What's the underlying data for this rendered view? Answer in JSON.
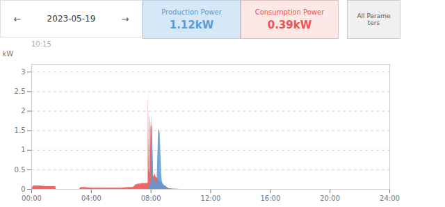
{
  "chart_data": {
    "type": "area",
    "title": "2023-05-19",
    "ylabel": "kW",
    "annotations": [
      "←",
      "→",
      "1.12kW",
      "0.39kW",
      "All Parame\nters",
      "10:15"
    ],
    "xlim": [
      0,
      24
    ],
    "xticks": [
      {
        "value": 0,
        "label": "00:00"
      },
      {
        "value": 4,
        "label": "04:00"
      },
      {
        "value": 8,
        "label": "08:00"
      },
      {
        "value": 12,
        "label": "12:00"
      },
      {
        "value": 16,
        "label": "16:00"
      },
      {
        "value": 20,
        "label": "20:00"
      },
      {
        "value": 24,
        "label": "24:00"
      }
    ],
    "ylim": [
      0,
      3.2
    ],
    "yticks": [
      0,
      0.5,
      1,
      1.5,
      2,
      2.5,
      3
    ],
    "grid": true,
    "series": [
      {
        "name": "Consumption Power",
        "color": "#f05050",
        "x": [
          0.0,
          0.1,
          0.2,
          0.5,
          0.75,
          1.0,
          1.5,
          1.6,
          1.65,
          1.7,
          1.8,
          2.0,
          2.5,
          3.0,
          3.2,
          3.3,
          3.5,
          4.0,
          4.5,
          5.0,
          5.5,
          6.0,
          6.5,
          6.8,
          7.0,
          7.1,
          7.2,
          7.3,
          7.4,
          7.5,
          7.6,
          7.65,
          7.7,
          7.75,
          7.8,
          7.82,
          7.85,
          7.87,
          7.9,
          7.95,
          8.0,
          8.03,
          8.05,
          8.1,
          8.15,
          8.2,
          8.25,
          8.3,
          8.35,
          8.4,
          8.5,
          8.6,
          8.7,
          8.8,
          8.9,
          9.0,
          9.1,
          9.2,
          9.5,
          10.0,
          11.0,
          12.0,
          24.0
        ],
        "values": [
          0.0,
          0.08,
          0.09,
          0.09,
          0.08,
          0.07,
          0.07,
          0.07,
          0.0,
          0.0,
          0.0,
          0.0,
          0.0,
          0.0,
          0.0,
          0.05,
          0.05,
          0.03,
          0.03,
          0.03,
          0.03,
          0.03,
          0.05,
          0.05,
          0.12,
          0.13,
          0.14,
          0.14,
          0.15,
          0.15,
          0.15,
          0.15,
          0.15,
          0.15,
          0.16,
          2.5,
          1.3,
          0.5,
          0.4,
          1.9,
          1.5,
          0.45,
          1.9,
          1.4,
          0.4,
          0.3,
          0.4,
          0.35,
          0.3,
          0.3,
          0.25,
          0.2,
          0.15,
          0.1,
          0.08,
          0.05,
          0.03,
          0.02,
          0.01,
          0.0,
          0.0,
          0.0,
          0.0
        ]
      },
      {
        "name": "Production Power",
        "color": "#5b9bd5",
        "x": [
          0.0,
          7.8,
          7.9,
          7.95,
          8.0,
          8.03,
          8.05,
          8.07,
          8.1,
          8.15,
          8.2,
          8.25,
          8.3,
          8.4,
          8.5,
          8.6,
          8.7,
          8.75,
          8.8,
          8.9,
          9.0,
          9.1,
          9.2,
          9.5,
          10.0,
          24.0
        ],
        "values": [
          0.0,
          0.0,
          0.1,
          0.12,
          0.15,
          1.65,
          1.6,
          1.6,
          1.2,
          0.35,
          0.25,
          0.2,
          0.18,
          0.15,
          1.55,
          1.45,
          0.4,
          0.2,
          0.15,
          0.1,
          0.08,
          0.05,
          0.02,
          0.0,
          0.0,
          0.0
        ]
      }
    ]
  }
}
